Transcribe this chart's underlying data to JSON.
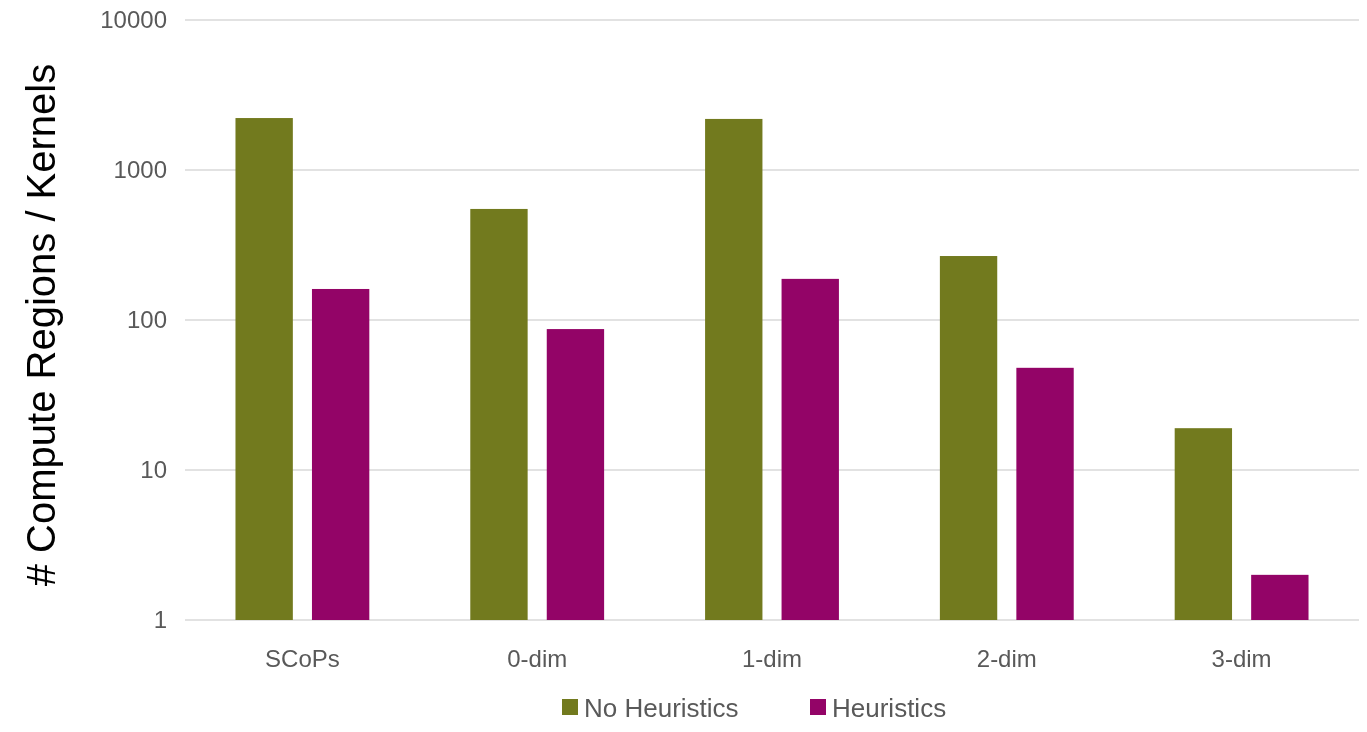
{
  "chart_data": {
    "type": "bar",
    "ylabel": "# Compute Regions / Kernels",
    "categories": [
      "SCoPs",
      "0-dim",
      "1-dim",
      "2-dim",
      "3-dim"
    ],
    "series": [
      {
        "name": "No Heuristics",
        "color": "#727a1e",
        "values": [
          2220,
          550,
          2190,
          267,
          19
        ]
      },
      {
        "name": "Heuristics",
        "color": "#930467",
        "values": [
          161,
          87,
          188,
          48,
          2
        ]
      }
    ],
    "log": true,
    "ylim": [
      1,
      10000
    ],
    "yticks": [
      1,
      10,
      100,
      1000,
      10000
    ],
    "grid": "y",
    "legend": "bottom"
  }
}
